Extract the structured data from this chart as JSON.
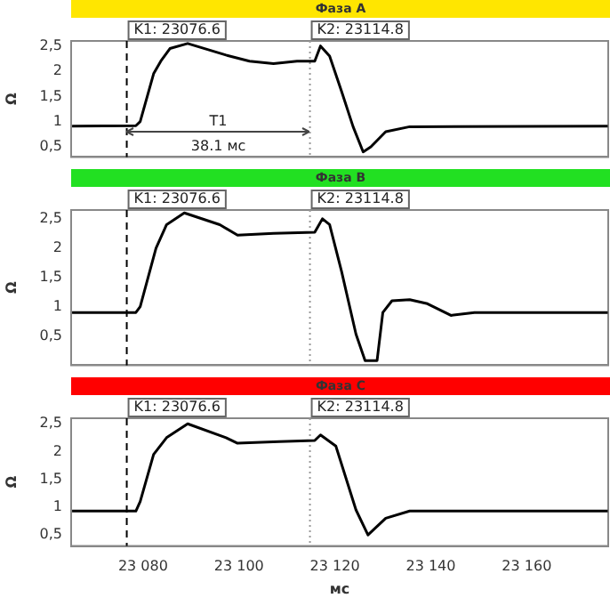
{
  "chart_data": [
    {
      "type": "line",
      "title": "Фаза A",
      "ylabel": "Ω",
      "x": [
        23065.2,
        23078.5,
        23079.4,
        23082.2,
        23083.7,
        23085.6,
        23089.3,
        23097.3,
        23102.2,
        23107.2,
        23112.1,
        23115.8,
        23117.0,
        23118.9,
        23121.4,
        23123.8,
        23125.9,
        23127.5,
        23130.6,
        23135.6,
        23176.9
      ],
      "series": [
        {
          "color": "#000000",
          "values": [
            0.91,
            0.92,
            1.0,
            1.95,
            2.2,
            2.45,
            2.55,
            2.32,
            2.2,
            2.15,
            2.2,
            2.2,
            2.5,
            2.3,
            1.6,
            0.9,
            0.4,
            0.5,
            0.8,
            0.9,
            0.91
          ]
        }
      ],
      "xlim": [
        23065,
        23177
      ],
      "ylim": [
        0.3,
        2.6
      ],
      "yticks": [
        {
          "value": 0.5,
          "label": "0,5"
        },
        {
          "value": 1,
          "label": "1"
        },
        {
          "value": 1.5,
          "label": "1,5"
        },
        {
          "value": 2,
          "label": "2"
        },
        {
          "value": 2.5,
          "label": "2,5"
        }
      ],
      "tick_labels": "y",
      "grid": false,
      "legend": false,
      "marker": "none",
      "line_style": "solid",
      "ref_lines": [
        {
          "axis": "x",
          "value": 23076.6,
          "label": "K1: 23076.6",
          "color": "#000000",
          "line_style": "dashed"
        },
        {
          "axis": "x",
          "value": 23114.8,
          "label": "K2: 23114.8",
          "color": "#999999",
          "line_style": "dotted"
        }
      ],
      "annotations": [
        "T1",
        "38.1 мс"
      ]
    },
    {
      "type": "line",
      "title": "Фаза B",
      "ylabel": "Ω",
      "x": [
        23065.2,
        23078.5,
        23079.4,
        23082.7,
        23084.9,
        23088.6,
        23096.0,
        23099.7,
        23107.2,
        23115.8,
        23117.4,
        23118.9,
        23121.4,
        23124.4,
        23126.3,
        23128.8,
        23130.0,
        23131.9,
        23135.6,
        23139.3,
        23144.2,
        23149.1,
        23176.9
      ],
      "series": [
        {
          "color": "#000000",
          "values": [
            0.9,
            0.9,
            1.0,
            2.0,
            2.4,
            2.6,
            2.4,
            2.22,
            2.25,
            2.27,
            2.5,
            2.4,
            1.6,
            0.53,
            0.08,
            0.08,
            0.9,
            1.1,
            1.12,
            1.05,
            0.85,
            0.9,
            0.9
          ]
        }
      ],
      "xlim": [
        23065,
        23177
      ],
      "ylim": [
        0,
        2.65
      ],
      "yticks": [
        {
          "value": 0.5,
          "label": "0,5"
        },
        {
          "value": 1,
          "label": "1"
        },
        {
          "value": 1.5,
          "label": "1,5"
        },
        {
          "value": 2,
          "label": "2"
        },
        {
          "value": 2.5,
          "label": "2,5"
        }
      ],
      "tick_labels": "y",
      "grid": false,
      "legend": false,
      "marker": "none",
      "line_style": "solid",
      "ref_lines": [
        {
          "axis": "x",
          "value": 23076.6,
          "label": "K1: 23076.6",
          "color": "#000000",
          "line_style": "dashed"
        },
        {
          "axis": "x",
          "value": 23114.8,
          "label": "K2: 23114.8",
          "color": "#999999",
          "line_style": "dotted"
        }
      ]
    },
    {
      "type": "line",
      "title": "Фаза C",
      "ylabel": "Ω",
      "xlabel": "мс",
      "x": [
        23065.2,
        23078.5,
        23079.4,
        23082.2,
        23084.9,
        23089.3,
        23097.3,
        23099.7,
        23108.4,
        23115.8,
        23117.0,
        23120.2,
        23124.4,
        23126.9,
        23130.6,
        23135.6,
        23176.9
      ],
      "series": [
        {
          "color": "#000000",
          "values": [
            0.93,
            0.93,
            1.1,
            1.95,
            2.25,
            2.5,
            2.25,
            2.15,
            2.18,
            2.2,
            2.3,
            2.1,
            0.95,
            0.5,
            0.8,
            0.93,
            0.93
          ]
        }
      ],
      "xlim": [
        23065,
        23177
      ],
      "xticks": [
        {
          "value": 23080,
          "label": "23 080"
        },
        {
          "value": 23100,
          "label": "23 100"
        },
        {
          "value": 23120,
          "label": "23 120"
        },
        {
          "value": 23140,
          "label": "23 140"
        },
        {
          "value": 23160,
          "label": "23 160"
        }
      ],
      "ylim": [
        0.3,
        2.6
      ],
      "yticks": [
        {
          "value": 0.5,
          "label": "0,5"
        },
        {
          "value": 1,
          "label": "1"
        },
        {
          "value": 1.5,
          "label": "1,5"
        },
        {
          "value": 2,
          "label": "2"
        },
        {
          "value": 2.5,
          "label": "2,5"
        }
      ],
      "grid": false,
      "legend": false,
      "marker": "none",
      "line_style": "solid",
      "ref_lines": [
        {
          "axis": "x",
          "value": 23076.6,
          "label": "K1: 23076.6",
          "color": "#000000",
          "line_style": "dashed"
        },
        {
          "axis": "x",
          "value": 23114.8,
          "label": "K2: 23114.8",
          "color": "#999999",
          "line_style": "dotted"
        }
      ]
    }
  ]
}
